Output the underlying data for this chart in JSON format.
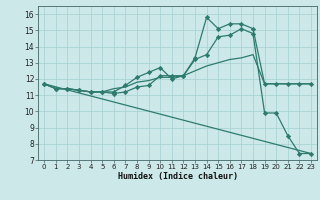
{
  "xlabel": "Humidex (Indice chaleur)",
  "background_color": "#cce8e8",
  "grid_color": "#aad4d4",
  "line_color": "#2e7b6e",
  "xlim": [
    -0.5,
    23.5
  ],
  "ylim": [
    7,
    16.5
  ],
  "xticks": [
    0,
    1,
    2,
    3,
    4,
    5,
    6,
    7,
    8,
    9,
    10,
    11,
    12,
    13,
    14,
    15,
    16,
    17,
    18,
    19,
    20,
    21,
    22,
    23
  ],
  "yticks": [
    7,
    8,
    9,
    10,
    11,
    12,
    13,
    14,
    15,
    16
  ],
  "series": [
    {
      "x": [
        0,
        1,
        2,
        3,
        4,
        5,
        6,
        7,
        8,
        9,
        10,
        11,
        12,
        13,
        14,
        15,
        16,
        17,
        18,
        19,
        20,
        21,
        22,
        23
      ],
      "y": [
        11.7,
        11.4,
        11.4,
        11.3,
        11.2,
        11.2,
        11.1,
        11.2,
        11.5,
        11.6,
        12.2,
        12.2,
        12.2,
        13.3,
        15.8,
        15.1,
        15.4,
        15.4,
        15.1,
        11.7,
        11.7,
        11.7,
        11.7,
        11.7
      ],
      "marker": true,
      "dashed": false
    },
    {
      "x": [
        0,
        23
      ],
      "y": [
        11.7,
        7.4
      ],
      "marker": false,
      "dashed": false
    },
    {
      "x": [
        0,
        1,
        2,
        3,
        4,
        5,
        6,
        7,
        8,
        9,
        10,
        11,
        12,
        13,
        14,
        15,
        16,
        17,
        18,
        19,
        20,
        21,
        22,
        23
      ],
      "y": [
        11.7,
        11.4,
        11.4,
        11.3,
        11.2,
        11.2,
        11.4,
        11.5,
        11.8,
        11.9,
        12.1,
        12.1,
        12.2,
        12.5,
        12.8,
        13.0,
        13.2,
        13.3,
        13.5,
        11.7,
        11.7,
        11.7,
        11.7,
        11.7
      ],
      "marker": false,
      "dashed": false
    },
    {
      "x": [
        0,
        1,
        2,
        3,
        4,
        5,
        6,
        7,
        8,
        9,
        10,
        11,
        12,
        13,
        14,
        15,
        16,
        17,
        18,
        19,
        20,
        21,
        22,
        23
      ],
      "y": [
        11.7,
        11.4,
        11.4,
        11.3,
        11.2,
        11.2,
        11.2,
        11.6,
        12.1,
        12.4,
        12.7,
        12.0,
        12.2,
        13.2,
        13.5,
        14.6,
        14.7,
        15.1,
        14.8,
        9.9,
        9.9,
        8.5,
        7.4,
        7.4
      ],
      "marker": true,
      "dashed": false
    }
  ]
}
